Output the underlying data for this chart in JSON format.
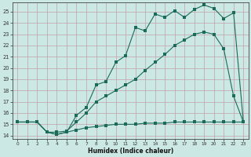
{
  "xlabel": "Humidex (Indice chaleur)",
  "bg_color": "#cce8e4",
  "line_color": "#1a6b5a",
  "grid_color": "#c0a0a8",
  "xlim": [
    -0.5,
    23.5
  ],
  "ylim": [
    13.7,
    25.8
  ],
  "xticks": [
    0,
    1,
    2,
    3,
    4,
    5,
    6,
    7,
    8,
    9,
    10,
    11,
    12,
    13,
    14,
    15,
    16,
    17,
    18,
    19,
    20,
    21,
    22,
    23
  ],
  "yticks": [
    14,
    15,
    16,
    17,
    18,
    19,
    20,
    21,
    22,
    23,
    24,
    25
  ],
  "line1_x": [
    0,
    1,
    2,
    3,
    4,
    5,
    6,
    7,
    8,
    9,
    10,
    11,
    12,
    13,
    14,
    15,
    16,
    17,
    18,
    19,
    20,
    21,
    22,
    23
  ],
  "line1_y": [
    15.2,
    15.2,
    15.2,
    14.3,
    14.1,
    14.3,
    14.5,
    14.7,
    14.8,
    14.9,
    15.0,
    15.0,
    15.0,
    15.1,
    15.1,
    15.1,
    15.2,
    15.2,
    15.2,
    15.2,
    15.2,
    15.2,
    15.2,
    15.2
  ],
  "line2_x": [
    0,
    1,
    2,
    3,
    4,
    5,
    6,
    7,
    8,
    9,
    10,
    11,
    12,
    13,
    14,
    15,
    16,
    17,
    18,
    19,
    20,
    21,
    22,
    23
  ],
  "line2_y": [
    15.2,
    15.2,
    15.2,
    14.3,
    14.3,
    14.4,
    15.2,
    16.0,
    17.0,
    17.5,
    18.0,
    18.5,
    19.0,
    19.8,
    20.5,
    21.2,
    22.0,
    22.5,
    23.0,
    23.2,
    23.0,
    21.7,
    17.5,
    15.2
  ],
  "line3_x": [
    0,
    1,
    2,
    3,
    4,
    5,
    6,
    7,
    8,
    9,
    10,
    11,
    12,
    13,
    14,
    15,
    16,
    17,
    18,
    19,
    20,
    21,
    22,
    23
  ],
  "line3_y": [
    15.2,
    15.2,
    15.2,
    14.3,
    14.1,
    14.3,
    15.8,
    16.5,
    18.5,
    18.8,
    20.5,
    21.1,
    23.6,
    23.3,
    24.8,
    24.5,
    25.1,
    24.5,
    25.2,
    25.6,
    25.3,
    24.4,
    24.9,
    15.2
  ]
}
